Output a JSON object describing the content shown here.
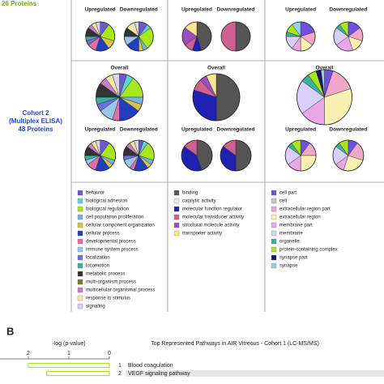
{
  "panel_a": {
    "top_label": "26 Proteins",
    "cohort2_label": [
      "Cohort 2",
      "(Multiplex ELISA)",
      "48 Proteins"
    ],
    "columns": [
      {
        "legend": [
          {
            "name": "behavior",
            "color": "#6a5acd"
          },
          {
            "name": "biological adhesion",
            "color": "#5fd3d3"
          },
          {
            "name": "biological regulation",
            "color": "#a8e61d"
          },
          {
            "name": "cell population proliferation",
            "color": "#6fb7e0"
          },
          {
            "name": "cellular component organization",
            "color": "#d8c04a"
          },
          {
            "name": "cellular process",
            "color": "#1f3fbf"
          },
          {
            "name": "developmental process",
            "color": "#e26ea8"
          },
          {
            "name": "immune system process",
            "color": "#9ac5e8"
          },
          {
            "name": "localization",
            "color": "#6f6fe0"
          },
          {
            "name": "locomotion",
            "color": "#3cb0a0"
          },
          {
            "name": "metabolic process",
            "color": "#333333"
          },
          {
            "name": "multi-organism process",
            "color": "#7a7a2a"
          },
          {
            "name": "multicellular organismal process",
            "color": "#c77fc7"
          },
          {
            "name": "response to stimulus",
            "color": "#f4e8a8"
          },
          {
            "name": "signaling",
            "color": "#d8d4f0"
          }
        ],
        "cohort1": {
          "up_label": "Upregulated",
          "up": [
            10,
            0,
            20,
            0,
            10,
            15,
            10,
            0,
            5,
            5,
            10,
            0,
            5,
            5,
            5
          ],
          "down_label": "Downregulated",
          "down": [
            10,
            5,
            25,
            5,
            5,
            15,
            0,
            10,
            0,
            0,
            10,
            0,
            0,
            10,
            5
          ]
        },
        "cohort2": {
          "overall_label": "Overall",
          "overall": [
            5,
            5,
            15,
            5,
            5,
            15,
            5,
            10,
            5,
            5,
            10,
            0,
            5,
            5,
            5
          ],
          "up_label": "Upregulated",
          "up": [
            10,
            0,
            20,
            5,
            5,
            15,
            10,
            5,
            0,
            5,
            10,
            0,
            5,
            5,
            5
          ],
          "down_label": "Downregulated",
          "down": [
            5,
            5,
            20,
            5,
            5,
            15,
            5,
            10,
            5,
            0,
            10,
            0,
            5,
            5,
            5
          ]
        }
      },
      {
        "legend": [
          {
            "name": "binding",
            "color": "#555555"
          },
          {
            "name": "catalytic activity",
            "color": "#e8e8e8"
          },
          {
            "name": "molecular function regulator",
            "color": "#2020b0"
          },
          {
            "name": "molecular transducer activity",
            "color": "#d06090"
          },
          {
            "name": "structural molecule activity",
            "color": "#9c4fc0"
          },
          {
            "name": "transporter activity",
            "color": "#f4e890"
          }
        ],
        "cohort1": {
          "up_label": "Upregulated",
          "up": [
            45,
            0,
            10,
            10,
            20,
            15
          ],
          "down_label": "Downregulated",
          "down": [
            50,
            0,
            0,
            50,
            0,
            0
          ]
        },
        "cohort2": {
          "overall_label": "Overall",
          "overall": [
            50,
            0,
            30,
            8,
            5,
            7
          ],
          "up_label": "Upregulated",
          "up": [
            45,
            0,
            40,
            15,
            0,
            0
          ],
          "down_label": "Downregulated",
          "down": [
            50,
            0,
            35,
            15,
            0,
            0
          ]
        }
      },
      {
        "legend": [
          {
            "name": "cell part",
            "color": "#7050e0"
          },
          {
            "name": "cell",
            "color": "#c8c8c8"
          },
          {
            "name": "extracellular region part",
            "color": "#f0a8c8"
          },
          {
            "name": "extracellular region",
            "color": "#f8f0b0"
          },
          {
            "name": "membrane part",
            "color": "#e8a8e8"
          },
          {
            "name": "membrane",
            "color": "#d8d0f8"
          },
          {
            "name": "organelle",
            "color": "#3cb0a0"
          },
          {
            "name": "protein-containing complex",
            "color": "#a8e61d"
          },
          {
            "name": "synapse part",
            "color": "#1a1a6a"
          },
          {
            "name": "synapse",
            "color": "#9ad0e8"
          }
        ],
        "cohort1": {
          "up_label": "Upregulated",
          "up": [
            20,
            0,
            15,
            15,
            10,
            15,
            5,
            10,
            0,
            10
          ],
          "down_label": "Downregulated",
          "down": [
            15,
            0,
            15,
            15,
            20,
            20,
            5,
            10,
            0,
            0
          ]
        },
        "cohort2": {
          "overall_label": "Overall",
          "overall": [
            5,
            0,
            15,
            30,
            15,
            20,
            5,
            5,
            3,
            2
          ],
          "up_label": "Upregulated",
          "up": [
            10,
            0,
            15,
            25,
            15,
            20,
            5,
            10,
            0,
            0
          ],
          "down_label": "Downregulated",
          "down": [
            10,
            0,
            20,
            25,
            10,
            20,
            5,
            10,
            0,
            0
          ]
        }
      }
    ]
  },
  "panel_b": {
    "letter": "B",
    "axis_label": "-log (p-value)",
    "title": "Top Represented Pathways in AIR Vitreous - Cohort 1 (LC-MS/MS)",
    "xlim": [
      0,
      2.7
    ],
    "xticks": [
      2,
      1,
      0
    ],
    "bar_color": "#a8e61d",
    "ranks": [
      "1",
      "2"
    ],
    "pathways": [
      "Blood coagulation",
      "VEGF signaling pathway"
    ],
    "values": [
      2.0,
      1.55
    ]
  }
}
